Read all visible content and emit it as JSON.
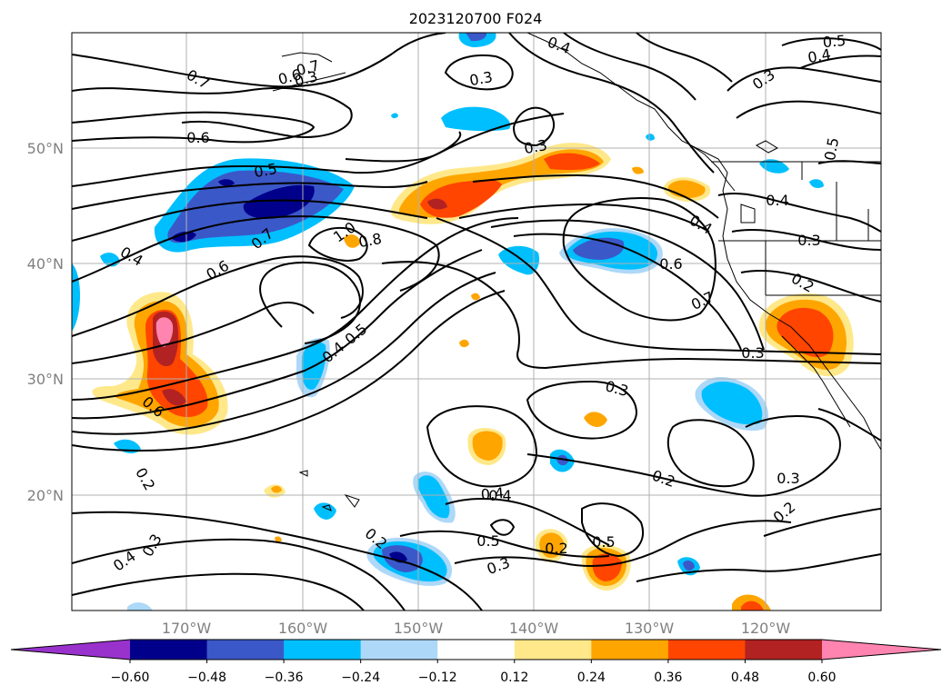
{
  "map": {
    "title": "2023120700 F024",
    "lat_labels": [
      "50°N",
      "40°N",
      "30°N",
      "20°N"
    ],
    "lon_labels": [
      "170°W",
      "160°W",
      "150°W",
      "140°W",
      "130°W",
      "120°W"
    ]
  },
  "colorbar": {
    "colors": [
      "#9932cc",
      "#00008b",
      "#3b58c8",
      "#00bfff",
      "#add8f8",
      "#ffffff",
      "#ffe88a",
      "#ffa500",
      "#ff4500",
      "#b22222",
      "#ff85b0"
    ],
    "tick_labels": [
      "−0.60",
      "−0.48",
      "−0.36",
      "−0.24",
      "−0.12",
      "0.12",
      "0.24",
      "0.36",
      "0.48",
      "0.60"
    ]
  },
  "contour_labels": [
    "0.5",
    "0.4",
    "0.3",
    "0.7",
    "0.6",
    "0.5",
    "0.7",
    "0.6",
    "0.4",
    "0.3",
    "0.3",
    "0.4",
    "0.5",
    "0.4",
    "0.3",
    "0.4",
    "0.8",
    "1.0",
    "0.7",
    "0.6",
    "0.5",
    "0.4",
    "0.4",
    "0.6",
    "0.7",
    "0.3",
    "0.2",
    "0.3",
    "0.6",
    "0.2",
    "0.2",
    "0.3",
    "0.2",
    "0.4",
    "0.5",
    "0.3",
    "0.2",
    "0.5",
    "0.2",
    "0.4",
    "0.3",
    "0.3"
  ]
}
